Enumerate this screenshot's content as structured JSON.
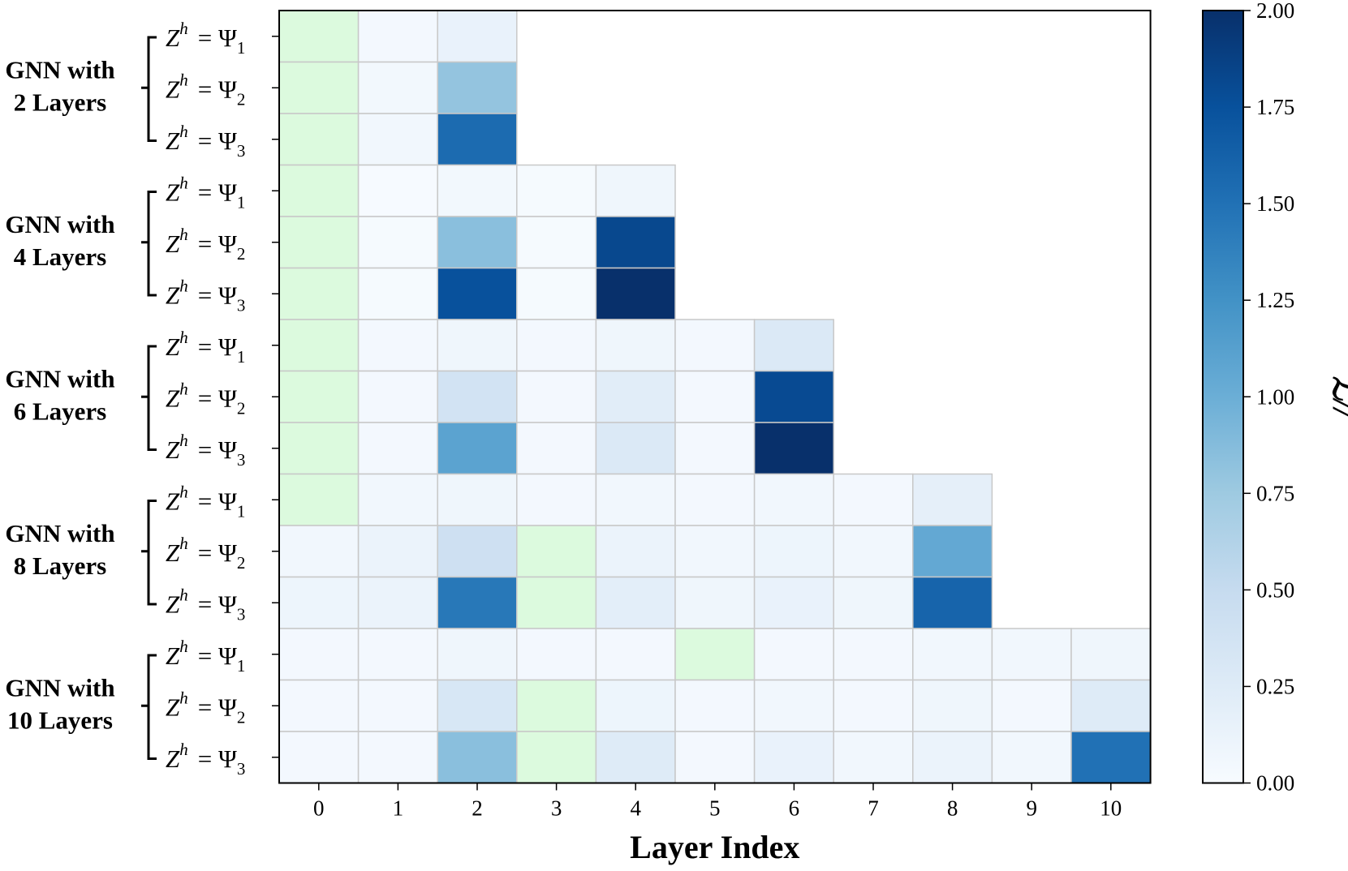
{
  "chart_data": {
    "type": "heatmap",
    "xlabel": "Layer Index",
    "x_ticks": [
      "0",
      "1",
      "2",
      "3",
      "4",
      "5",
      "6",
      "7",
      "8",
      "9",
      "10"
    ],
    "colorbar": {
      "label": "ℒ//",
      "range": [
        0,
        2
      ],
      "ticks": [
        "0.00",
        "0.25",
        "0.50",
        "0.75",
        "1.00",
        "1.25",
        "1.50",
        "1.75",
        "2.00"
      ],
      "colormap": "Blues"
    },
    "highlight_color": "#dcfade",
    "groups": [
      {
        "label_line1": "GNN with",
        "label_line2": "2 Layers",
        "rows": [
          {
            "lhs": "Z",
            "sup": "h",
            "rhs": "= Ψ",
            "sub": "1",
            "values": [
              null,
              0.04,
              0.14
            ]
          },
          {
            "lhs": "Z",
            "sup": "h",
            "rhs": "= Ψ",
            "sub": "2",
            "values": [
              null,
              0.05,
              0.8
            ]
          },
          {
            "lhs": "Z",
            "sup": "h",
            "rhs": "= Ψ",
            "sub": "3",
            "values": [
              null,
              0.06,
              1.55
            ]
          }
        ]
      },
      {
        "label_line1": "GNN with",
        "label_line2": "4 Layers",
        "rows": [
          {
            "lhs": "Z",
            "sup": "h",
            "rhs": "= Ψ",
            "sub": "1",
            "values": [
              null,
              0.01,
              0.05,
              0.02,
              0.08
            ]
          },
          {
            "lhs": "Z",
            "sup": "h",
            "rhs": "= Ψ",
            "sub": "2",
            "values": [
              null,
              0.02,
              0.85,
              0.02,
              1.82
            ]
          },
          {
            "lhs": "Z",
            "sup": "h",
            "rhs": "= Ψ",
            "sub": "3",
            "values": [
              null,
              0.02,
              1.75,
              0.02,
              2.0
            ]
          }
        ]
      },
      {
        "label_line1": "GNN with",
        "label_line2": "6 Layers",
        "rows": [
          {
            "lhs": "Z",
            "sup": "h",
            "rhs": "= Ψ",
            "sub": "1",
            "values": [
              null,
              0.04,
              0.08,
              0.04,
              0.08,
              0.04,
              0.28
            ]
          },
          {
            "lhs": "Z",
            "sup": "h",
            "rhs": "= Ψ",
            "sub": "2",
            "values": [
              null,
              0.04,
              0.38,
              0.04,
              0.22,
              0.04,
              1.8
            ]
          },
          {
            "lhs": "Z",
            "sup": "h",
            "rhs": "= Ψ",
            "sub": "3",
            "values": [
              null,
              0.04,
              1.1,
              0.04,
              0.28,
              0.04,
              2.0
            ]
          }
        ]
      },
      {
        "label_line1": "GNN with",
        "label_line2": "8 Layers",
        "rows": [
          {
            "lhs": "Z",
            "sup": "h",
            "rhs": "= Ψ",
            "sub": "1",
            "values": [
              null,
              0.06,
              0.08,
              0.04,
              0.06,
              0.04,
              0.06,
              0.04,
              0.18
            ]
          },
          {
            "lhs": "Z",
            "sup": "h",
            "rhs": "= Ψ",
            "sub": "2",
            "values": [
              0.06,
              0.12,
              0.42,
              null,
              0.12,
              0.06,
              0.1,
              0.06,
              1.05
            ]
          },
          {
            "lhs": "Z",
            "sup": "h",
            "rhs": "= Ψ",
            "sub": "3",
            "values": [
              0.1,
              0.12,
              1.45,
              null,
              0.2,
              0.08,
              0.14,
              0.08,
              1.6
            ]
          }
        ]
      },
      {
        "label_line1": "GNN with",
        "label_line2": "10 Layers",
        "rows": [
          {
            "lhs": "Z",
            "sup": "h",
            "rhs": "= Ψ",
            "sub": "1",
            "values": [
              0.04,
              0.04,
              0.08,
              0.04,
              0.04,
              null,
              0.04,
              0.04,
              0.06,
              0.06,
              0.08
            ]
          },
          {
            "lhs": "Z",
            "sup": "h",
            "rhs": "= Ψ",
            "sub": "2",
            "values": [
              0.04,
              0.04,
              0.32,
              null,
              0.1,
              0.04,
              0.06,
              0.04,
              0.08,
              0.04,
              0.25
            ]
          },
          {
            "lhs": "Z",
            "sup": "h",
            "rhs": "= Ψ",
            "sub": "3",
            "values": [
              0.04,
              0.04,
              0.85,
              null,
              0.25,
              0.04,
              0.14,
              0.06,
              0.12,
              0.06,
              1.5
            ]
          }
        ]
      }
    ]
  }
}
